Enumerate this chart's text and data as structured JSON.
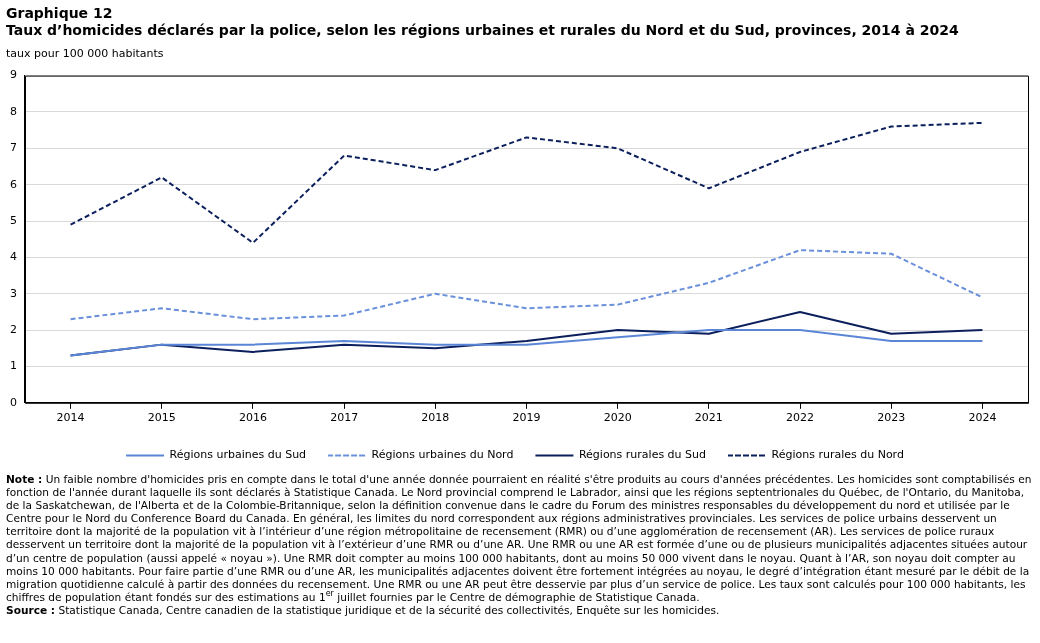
{
  "chart_data": {
    "type": "line",
    "title": "Graphique 12",
    "subtitle": "Taux d’homicides déclarés par la police, selon les régions urbaines et rurales du Nord et du Sud, provinces, 2014 à 2024",
    "ylabel": "taux pour 100 000 habitants",
    "categories": [
      "2014",
      "2015",
      "2016",
      "2017",
      "2018",
      "2019",
      "2020",
      "2021",
      "2022",
      "2023",
      "2024"
    ],
    "series": [
      {
        "name": "Régions urbaines du Sud",
        "color": "#5b86d6",
        "line_style": "solid",
        "values": [
          1.3,
          1.6,
          1.6,
          1.7,
          1.6,
          1.6,
          1.8,
          2.0,
          2.0,
          1.7,
          1.7
        ]
      },
      {
        "name": "Régions urbaines du Nord",
        "color": "#6a90dc",
        "line_style": "dashed",
        "values": [
          2.3,
          2.6,
          2.3,
          2.4,
          3.0,
          2.6,
          2.7,
          3.3,
          4.2,
          4.1,
          2.9
        ]
      },
      {
        "name": "Régions rurales du Sud",
        "color": "#0b1f5c",
        "line_style": "solid",
        "values": [
          1.3,
          1.6,
          1.4,
          1.6,
          1.5,
          1.7,
          2.0,
          1.9,
          2.5,
          1.9,
          2.0
        ]
      },
      {
        "name": "Régions rurales du Nord",
        "color": "#0b1f5c",
        "line_style": "dashed",
        "values": [
          4.9,
          6.2,
          4.4,
          6.8,
          6.4,
          7.3,
          7.0,
          5.9,
          6.9,
          7.6,
          7.7
        ]
      }
    ],
    "ylim": [
      0,
      9
    ],
    "yticks": [
      0,
      1,
      2,
      3,
      4,
      5,
      6,
      7,
      8,
      9
    ],
    "grid": "y",
    "legend": "bottom",
    "marker": "none",
    "annotations": [
      "Note : Un faible nombre d'homicides pris en compte dans le total d'une année donnée pourraient en réalité s'être produits au cours d'années précédentes. Les homicides sont comptabilisés en fonction de l'année durant laquelle ils sont déclarés à Statistique Canada. Le Nord provincial comprend le Labrador, ainsi que les régions septentrionales du Québec, de l'Ontario, du Manitoba, de la Saskatchewan, de l'Alberta et de la Colombie-Britannique, selon la définition convenue dans le cadre du Forum des ministres responsables du développement du nord et utilisée par le Centre pour le Nord du Conference Board du Canada. En général, les limites du nord correspondent aux régions administratives provinciales. Les services de police urbains desservent un territoire dont la majorité de la population vit à l’intérieur d’une région métropolitaine de recensement (RMR) ou d’une agglomération de recensement (AR). Les services de police ruraux desservent un territoire dont la majorité de la population vit à l’extérieur d’une RMR ou d’une AR. Une RMR ou une AR est formée d’une ou de plusieurs municipalités adjacentes situées autour d’un centre de population (aussi appelé « noyau »). Une RMR doit compter au moins 100 000 habitants, dont au moins 50 000 vivent dans le noyau. Quant à l’AR, son noyau doit compter au moins 10 000 habitants. Pour faire partie d’une RMR ou d’une AR, les municipalités adjacentes doivent être fortement intégrées au noyau, le degré d’intégration étant mesuré par le débit de la migration quotidienne calculé à partir des données du recensement. Une RMR ou une AR peut être desservie par plus d’un service de police. Les taux sont calculés pour 100 000 habitants, les chiffres de population étant fondés sur des estimations au 1$^{er}$ juillet fournies par le Centre de démographie de Statistique Canada.",
      "Source : Statistique Canada, Centre canadien de la statistique juridique et de la sécurité des collectivités, Enquête sur les homicides."
    ]
  }
}
